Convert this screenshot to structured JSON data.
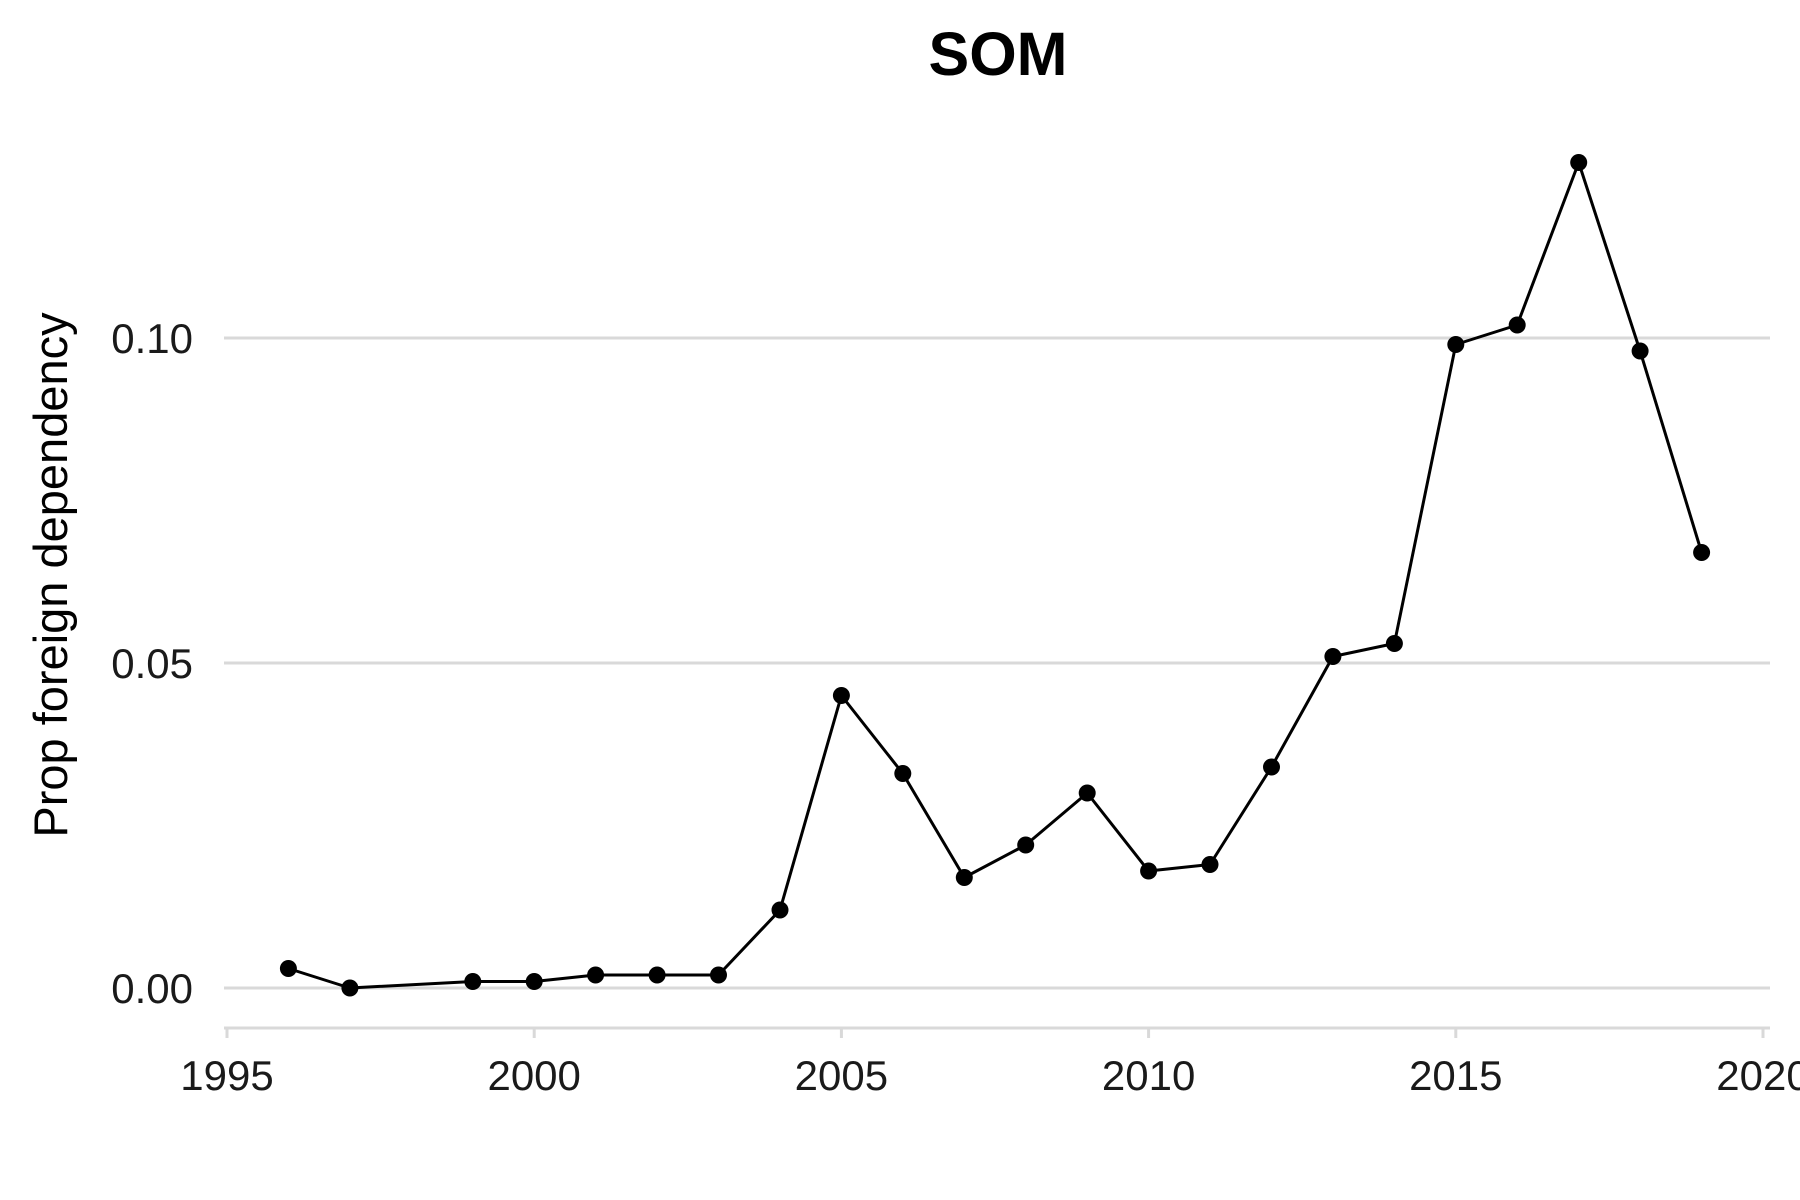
{
  "chart_data": {
    "type": "line",
    "title": "SOM",
    "xlabel": "",
    "ylabel": "Prop foreign dependency",
    "xlim": [
      1995,
      2020
    ],
    "ylim": [
      -0.006,
      0.13
    ],
    "x_ticks": [
      1995,
      2000,
      2005,
      2010,
      2015,
      2020
    ],
    "y_ticks": [
      0.0,
      0.05,
      0.1
    ],
    "y_tick_labels": [
      "0.00",
      "0.05",
      "0.10"
    ],
    "grid": "horizontal major",
    "legend": "none",
    "colors": {
      "series": "#000000",
      "grid": "#d9d9d9"
    },
    "series": [
      {
        "x": [
          1996,
          1997,
          1999,
          2000,
          2001,
          2002,
          2003,
          2004,
          2005,
          2006,
          2007,
          2008,
          2009,
          2010,
          2011,
          2012,
          2013,
          2014,
          2015,
          2016,
          2017,
          2018,
          2019
        ],
        "y": [
          0.003,
          0.0,
          0.001,
          0.001,
          0.002,
          0.002,
          0.002,
          0.012,
          0.045,
          0.033,
          0.017,
          0.022,
          0.03,
          0.018,
          0.019,
          0.034,
          0.051,
          0.053,
          0.099,
          0.102,
          0.127,
          0.098,
          0.067
        ]
      }
    ]
  }
}
